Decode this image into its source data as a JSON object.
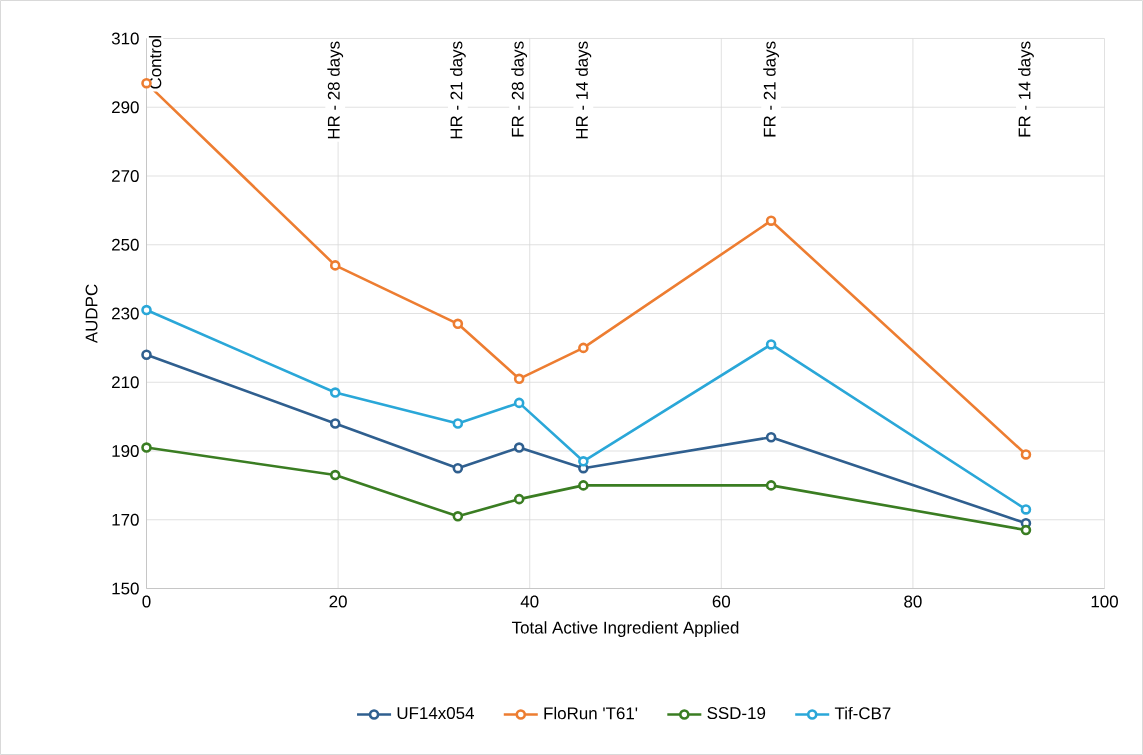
{
  "chart_data": {
    "type": "line",
    "xlabel": "Total Active Ingredient Applied",
    "ylabel": "AUDPC",
    "x": [
      0,
      19.7,
      32.5,
      38.9,
      45.6,
      65.2,
      91.8
    ],
    "series": [
      {
        "name": "UF14x054",
        "color": "#2f5f8f",
        "values": [
          218,
          198,
          185,
          191,
          185,
          194,
          169
        ]
      },
      {
        "name": "FloRun 'T61'",
        "color": "#ed7d31",
        "values": [
          297,
          244,
          227,
          211,
          220,
          257,
          189
        ]
      },
      {
        "name": "SSD-19",
        "color": "#3a7d22",
        "values": [
          191,
          183,
          171,
          176,
          180,
          180,
          167
        ]
      },
      {
        "name": "Tif-CB7",
        "color": "#2aa7d8",
        "values": [
          231,
          207,
          198,
          204,
          187,
          221,
          173
        ]
      }
    ],
    "xlim": [
      0,
      100
    ],
    "xticks": [
      0,
      20,
      40,
      60,
      80,
      100
    ],
    "ylim": [
      150,
      310
    ],
    "yticks": [
      150,
      170,
      190,
      210,
      230,
      250,
      270,
      290,
      310
    ],
    "annotations": [
      "Control",
      "HR - 28 days",
      "HR - 21 days",
      "FR - 28 days",
      "HR - 14 days",
      "FR - 21 days",
      "FR - 14 days"
    ],
    "grid": true,
    "legend": "bottom",
    "marker": "circle"
  }
}
